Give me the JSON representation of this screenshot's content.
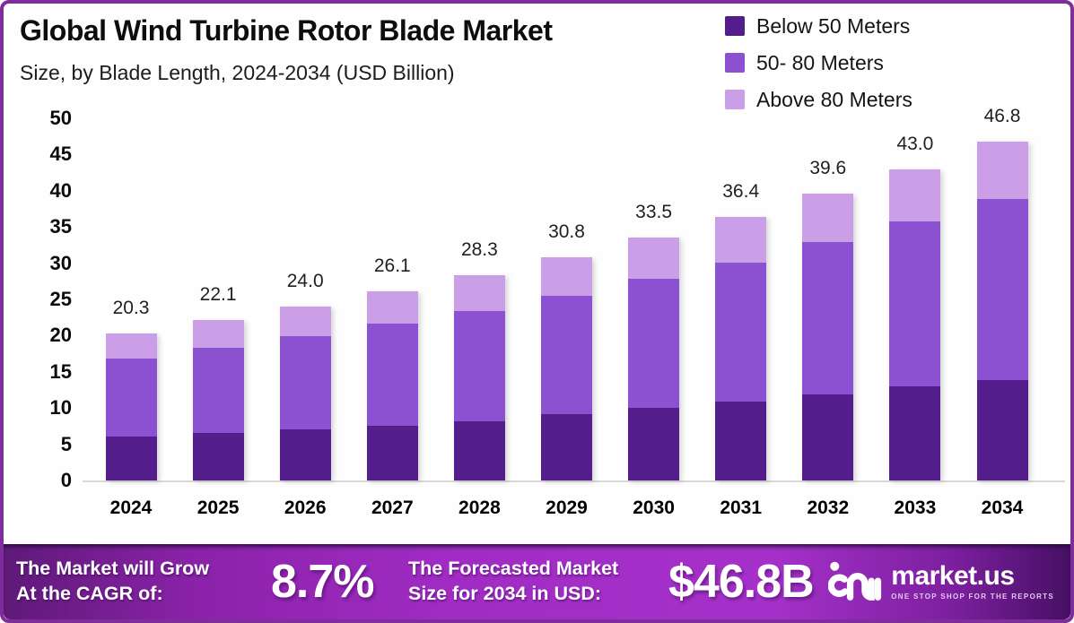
{
  "chart_data": {
    "type": "bar",
    "stacked": true,
    "title": "Global Wind Turbine Rotor Blade Market",
    "subtitle": "Size, by Blade Length, 2024-2034 (USD Billion)",
    "categories": [
      "2024",
      "2025",
      "2026",
      "2027",
      "2028",
      "2029",
      "2030",
      "2031",
      "2032",
      "2033",
      "2034"
    ],
    "series": [
      {
        "name": "Below 50 Meters",
        "color": "#531e8c",
        "values": [
          6.1,
          6.6,
          7.1,
          7.6,
          8.2,
          9.1,
          10.0,
          10.9,
          11.9,
          13.0,
          13.9
        ]
      },
      {
        "name": "50- 80 Meters",
        "color": "#8b51d1",
        "values": [
          10.7,
          11.7,
          12.8,
          14.0,
          15.2,
          16.4,
          17.9,
          19.2,
          21.0,
          22.8,
          25.0
        ]
      },
      {
        "name": "Above 80 Meters",
        "color": "#cb9fe7",
        "values": [
          3.5,
          3.8,
          4.1,
          4.5,
          4.9,
          5.3,
          5.6,
          6.3,
          6.7,
          7.2,
          7.9
        ]
      }
    ],
    "totals": [
      20.3,
      22.1,
      24.0,
      26.1,
      28.3,
      30.8,
      33.5,
      36.4,
      39.6,
      43.0,
      46.8
    ],
    "yticks": [
      0,
      5,
      10,
      15,
      20,
      25,
      30,
      35,
      40,
      45,
      50
    ],
    "ylim": [
      0,
      50
    ],
    "grid": false,
    "legend_position": "top-right"
  },
  "banner": {
    "grow_line1": "The Market will Grow",
    "grow_line2": "At the CAGR of:",
    "cagr_value": "8.7%",
    "forecast_line1": "The Forecasted Market",
    "forecast_line2": "Size for 2034 in USD:",
    "forecast_value": "$46.8B",
    "logo_text": "market.us",
    "logo_tagline": "ONE STOP SHOP FOR THE REPORTS"
  },
  "colors": {
    "frame_border": "#7d2e9b",
    "banner_gradient": [
      "#5e1a78",
      "#8b22a9",
      "#a02cc4",
      "#a531ca",
      "#7c1f9e",
      "#451063"
    ],
    "baseline": "#d8d8d8",
    "text_dark": "#0d0d0d"
  }
}
